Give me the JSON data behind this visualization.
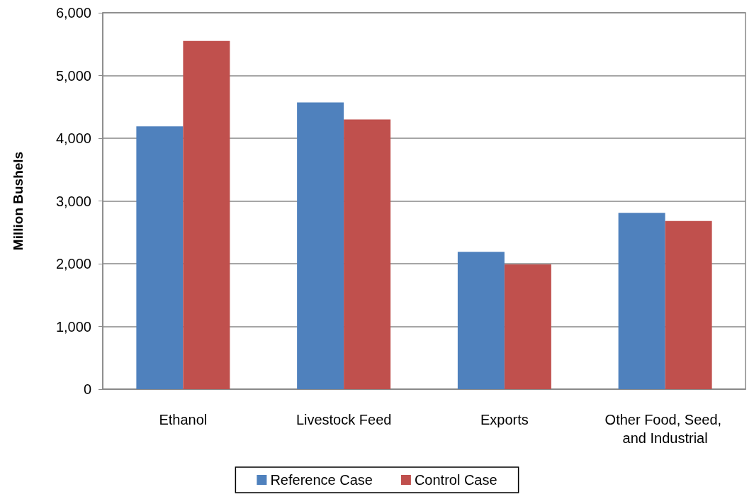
{
  "chart_data": {
    "type": "bar",
    "ylabel": "Million Bushels",
    "categories": [
      "Ethanol",
      "Livestock Feed",
      "Exports",
      "Other Food, Seed, and Industrial"
    ],
    "series": [
      {
        "name": "Reference Case",
        "color": "#4f81bd",
        "values": [
          4190,
          4570,
          2190,
          2810
        ]
      },
      {
        "name": "Control Case",
        "color": "#c0504d",
        "values": [
          5550,
          4300,
          1990,
          2680
        ]
      }
    ],
    "ylim": [
      0,
      6000
    ],
    "yticks": [
      0,
      {
        "value": 1000,
        "label": "1,000"
      },
      {
        "value": 2000,
        "label": "2,000"
      },
      {
        "value": 3000,
        "label": "3,000"
      },
      {
        "value": 4000,
        "label": "4,000"
      },
      {
        "value": 5000,
        "label": "5,000"
      },
      {
        "value": 6000,
        "label": "6,000"
      }
    ],
    "grid": "y",
    "legend": "bottom"
  }
}
